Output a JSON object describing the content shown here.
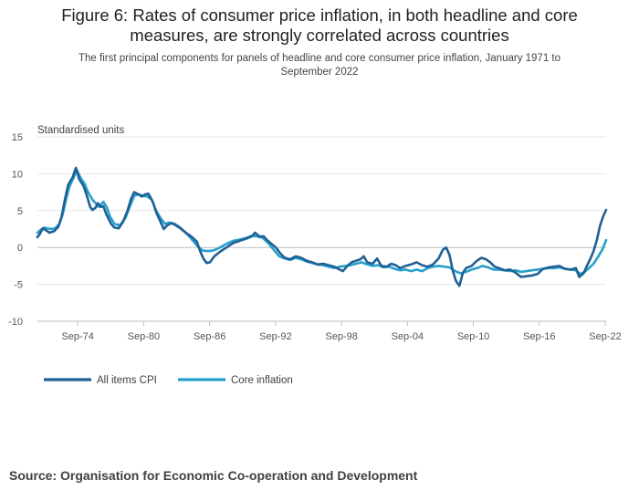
{
  "title_line1": "Figure 6: Rates of consumer price inflation, in both headline and core",
  "title_line2": "measures, are strongly correlated across countries",
  "subtitle_line1": "The first principal components for panels of headline and core consumer price inflation, January 1971 to",
  "subtitle_line2": "September 2022",
  "source": "Source: Organisation for Economic Co-operation and Development",
  "chart_data": {
    "type": "line",
    "title": "Figure 6: Rates of consumer price inflation, in both headline and core measures, are strongly correlated across countries",
    "ylabel": "Standardised units",
    "xlabel": "",
    "ylim": [
      -10,
      15
    ],
    "xlim": [
      1971.0,
      2022.75
    ],
    "yticks": [
      15,
      10,
      5,
      0,
      -5,
      -10
    ],
    "xticks": [
      {
        "label": "Sep-74",
        "value": 1974.67
      },
      {
        "label": "Sep-80",
        "value": 1980.67
      },
      {
        "label": "Sep-86",
        "value": 1986.67
      },
      {
        "label": "Sep-92",
        "value": 1992.67
      },
      {
        "label": "Sep-98",
        "value": 1998.67
      },
      {
        "label": "Sep-04",
        "value": 2004.67
      },
      {
        "label": "Sep-10",
        "value": 2010.67
      },
      {
        "label": "Sep-16",
        "value": 2016.67
      },
      {
        "label": "Sep-22",
        "value": 2022.67
      }
    ],
    "grid": true,
    "legend": "bottom-left",
    "series": [
      {
        "name": "All items CPI",
        "color": "#206095",
        "points": [
          [
            1971.0,
            1.4
          ],
          [
            1971.2,
            1.8
          ],
          [
            1971.5,
            2.6
          ],
          [
            1971.8,
            2.3
          ],
          [
            1972.1,
            2.0
          ],
          [
            1972.5,
            2.2
          ],
          [
            1972.9,
            2.8
          ],
          [
            1973.2,
            4.2
          ],
          [
            1973.5,
            6.5
          ],
          [
            1973.8,
            8.5
          ],
          [
            1974.2,
            9.5
          ],
          [
            1974.5,
            10.8
          ],
          [
            1974.8,
            9.3
          ],
          [
            1975.2,
            8.3
          ],
          [
            1975.5,
            7.0
          ],
          [
            1975.8,
            5.5
          ],
          [
            1976.0,
            5.1
          ],
          [
            1976.3,
            5.4
          ],
          [
            1976.5,
            6.0
          ],
          [
            1976.8,
            5.5
          ],
          [
            1977.0,
            5.6
          ],
          [
            1977.3,
            4.4
          ],
          [
            1977.7,
            3.2
          ],
          [
            1978.0,
            2.7
          ],
          [
            1978.4,
            2.6
          ],
          [
            1978.8,
            3.5
          ],
          [
            1979.2,
            5.0
          ],
          [
            1979.5,
            6.5
          ],
          [
            1979.8,
            7.5
          ],
          [
            1980.2,
            7.2
          ],
          [
            1980.5,
            6.9
          ],
          [
            1980.8,
            7.2
          ],
          [
            1981.1,
            7.3
          ],
          [
            1981.5,
            6.2
          ],
          [
            1981.8,
            4.8
          ],
          [
            1982.2,
            3.5
          ],
          [
            1982.5,
            2.5
          ],
          [
            1982.8,
            3.0
          ],
          [
            1983.2,
            3.3
          ],
          [
            1983.6,
            3.0
          ],
          [
            1984.0,
            2.6
          ],
          [
            1984.5,
            2.0
          ],
          [
            1985.0,
            1.5
          ],
          [
            1985.5,
            0.8
          ],
          [
            1985.8,
            -0.5
          ],
          [
            1986.1,
            -1.5
          ],
          [
            1986.4,
            -2.1
          ],
          [
            1986.7,
            -2.0
          ],
          [
            1987.1,
            -1.2
          ],
          [
            1987.6,
            -0.6
          ],
          [
            1988.2,
            0.0
          ],
          [
            1988.8,
            0.6
          ],
          [
            1989.4,
            0.9
          ],
          [
            1990.0,
            1.2
          ],
          [
            1990.5,
            1.5
          ],
          [
            1990.8,
            2.0
          ],
          [
            1991.2,
            1.5
          ],
          [
            1991.6,
            1.5
          ],
          [
            1991.9,
            1.0
          ],
          [
            1992.3,
            0.5
          ],
          [
            1992.7,
            0.0
          ],
          [
            1993.1,
            -0.8
          ],
          [
            1993.5,
            -1.4
          ],
          [
            1994.0,
            -1.6
          ],
          [
            1994.5,
            -1.2
          ],
          [
            1995.0,
            -1.4
          ],
          [
            1995.5,
            -1.8
          ],
          [
            1996.0,
            -2.0
          ],
          [
            1996.5,
            -2.3
          ],
          [
            1997.0,
            -2.2
          ],
          [
            1997.5,
            -2.4
          ],
          [
            1998.0,
            -2.6
          ],
          [
            1998.5,
            -3.0
          ],
          [
            1998.8,
            -3.2
          ],
          [
            1999.2,
            -2.5
          ],
          [
            1999.6,
            -2.0
          ],
          [
            2000.0,
            -1.8
          ],
          [
            2000.4,
            -1.6
          ],
          [
            2000.7,
            -1.2
          ],
          [
            2001.0,
            -2.0
          ],
          [
            2001.5,
            -2.2
          ],
          [
            2001.9,
            -1.5
          ],
          [
            2002.3,
            -2.5
          ],
          [
            2002.8,
            -2.6
          ],
          [
            2003.2,
            -2.2
          ],
          [
            2003.6,
            -2.4
          ],
          [
            2004.0,
            -2.8
          ],
          [
            2004.5,
            -2.5
          ],
          [
            2005.0,
            -2.3
          ],
          [
            2005.5,
            -2.0
          ],
          [
            2006.0,
            -2.4
          ],
          [
            2006.5,
            -2.6
          ],
          [
            2007.0,
            -2.3
          ],
          [
            2007.5,
            -1.5
          ],
          [
            2007.9,
            -0.3
          ],
          [
            2008.2,
            0.0
          ],
          [
            2008.5,
            -1.0
          ],
          [
            2008.8,
            -3.2
          ],
          [
            2009.1,
            -4.6
          ],
          [
            2009.4,
            -5.2
          ],
          [
            2009.7,
            -3.5
          ],
          [
            2010.0,
            -2.8
          ],
          [
            2010.5,
            -2.5
          ],
          [
            2011.0,
            -1.8
          ],
          [
            2011.4,
            -1.4
          ],
          [
            2011.8,
            -1.6
          ],
          [
            2012.2,
            -2.0
          ],
          [
            2012.6,
            -2.6
          ],
          [
            2013.0,
            -2.8
          ],
          [
            2013.5,
            -3.1
          ],
          [
            2014.0,
            -3.0
          ],
          [
            2014.5,
            -3.4
          ],
          [
            2015.0,
            -4.0
          ],
          [
            2015.5,
            -3.9
          ],
          [
            2016.0,
            -3.8
          ],
          [
            2016.5,
            -3.6
          ],
          [
            2017.0,
            -2.9
          ],
          [
            2017.5,
            -2.7
          ],
          [
            2018.0,
            -2.6
          ],
          [
            2018.5,
            -2.5
          ],
          [
            2019.0,
            -2.9
          ],
          [
            2019.5,
            -3.0
          ],
          [
            2020.0,
            -2.8
          ],
          [
            2020.3,
            -4.0
          ],
          [
            2020.7,
            -3.5
          ],
          [
            2021.0,
            -2.5
          ],
          [
            2021.3,
            -1.6
          ],
          [
            2021.6,
            -0.5
          ],
          [
            2021.9,
            1.0
          ],
          [
            2022.2,
            3.0
          ],
          [
            2022.5,
            4.3
          ],
          [
            2022.75,
            5.1
          ]
        ]
      },
      {
        "name": "Core inflation",
        "color": "#27a0cc",
        "points": [
          [
            1971.0,
            2.0
          ],
          [
            1971.3,
            2.4
          ],
          [
            1971.6,
            2.7
          ],
          [
            1971.9,
            2.6
          ],
          [
            1972.2,
            2.5
          ],
          [
            1972.6,
            2.6
          ],
          [
            1973.0,
            3.2
          ],
          [
            1973.3,
            4.5
          ],
          [
            1973.6,
            6.5
          ],
          [
            1973.9,
            8.2
          ],
          [
            1974.3,
            9.5
          ],
          [
            1974.6,
            10.5
          ],
          [
            1974.9,
            9.5
          ],
          [
            1975.3,
            8.6
          ],
          [
            1975.6,
            7.5
          ],
          [
            1976.0,
            6.5
          ],
          [
            1976.3,
            6.0
          ],
          [
            1976.6,
            5.5
          ],
          [
            1977.0,
            6.2
          ],
          [
            1977.3,
            5.5
          ],
          [
            1977.6,
            4.2
          ],
          [
            1978.0,
            3.2
          ],
          [
            1978.5,
            3.0
          ],
          [
            1979.0,
            4.0
          ],
          [
            1979.4,
            5.5
          ],
          [
            1979.8,
            7.0
          ],
          [
            1980.2,
            7.2
          ],
          [
            1980.6,
            7.0
          ],
          [
            1981.0,
            6.9
          ],
          [
            1981.4,
            6.5
          ],
          [
            1981.8,
            5.0
          ],
          [
            1982.2,
            4.0
          ],
          [
            1982.6,
            3.2
          ],
          [
            1983.0,
            3.4
          ],
          [
            1983.5,
            3.2
          ],
          [
            1984.0,
            2.7
          ],
          [
            1984.5,
            2.0
          ],
          [
            1985.0,
            1.2
          ],
          [
            1985.5,
            0.3
          ],
          [
            1986.0,
            -0.4
          ],
          [
            1986.5,
            -0.5
          ],
          [
            1987.0,
            -0.4
          ],
          [
            1987.5,
            -0.1
          ],
          [
            1988.2,
            0.5
          ],
          [
            1988.8,
            0.9
          ],
          [
            1989.5,
            1.1
          ],
          [
            1990.0,
            1.3
          ],
          [
            1990.5,
            1.6
          ],
          [
            1991.0,
            1.5
          ],
          [
            1991.5,
            1.3
          ],
          [
            1992.0,
            0.6
          ],
          [
            1992.5,
            -0.3
          ],
          [
            1993.0,
            -1.2
          ],
          [
            1993.5,
            -1.5
          ],
          [
            1994.0,
            -1.7
          ],
          [
            1994.5,
            -1.4
          ],
          [
            1995.0,
            -1.6
          ],
          [
            1995.5,
            -1.9
          ],
          [
            1996.0,
            -2.1
          ],
          [
            1996.5,
            -2.3
          ],
          [
            1997.0,
            -2.4
          ],
          [
            1997.5,
            -2.6
          ],
          [
            1998.0,
            -2.8
          ],
          [
            1998.5,
            -2.6
          ],
          [
            1999.0,
            -2.5
          ],
          [
            1999.5,
            -2.4
          ],
          [
            2000.0,
            -2.2
          ],
          [
            2000.5,
            -2.0
          ],
          [
            2001.0,
            -2.3
          ],
          [
            2001.5,
            -2.5
          ],
          [
            2002.0,
            -2.4
          ],
          [
            2002.5,
            -2.7
          ],
          [
            2003.0,
            -2.6
          ],
          [
            2003.5,
            -2.9
          ],
          [
            2004.0,
            -3.1
          ],
          [
            2004.5,
            -3.0
          ],
          [
            2005.0,
            -3.2
          ],
          [
            2005.5,
            -3.0
          ],
          [
            2006.0,
            -3.2
          ],
          [
            2006.5,
            -2.8
          ],
          [
            2007.0,
            -2.6
          ],
          [
            2007.5,
            -2.5
          ],
          [
            2008.0,
            -2.6
          ],
          [
            2008.5,
            -2.7
          ],
          [
            2009.0,
            -3.2
          ],
          [
            2009.5,
            -3.5
          ],
          [
            2010.0,
            -3.3
          ],
          [
            2010.5,
            -3.0
          ],
          [
            2011.0,
            -2.8
          ],
          [
            2011.5,
            -2.5
          ],
          [
            2012.0,
            -2.7
          ],
          [
            2012.5,
            -3.0
          ],
          [
            2013.0,
            -3.0
          ],
          [
            2013.5,
            -3.1
          ],
          [
            2014.0,
            -3.2
          ],
          [
            2014.5,
            -3.1
          ],
          [
            2015.0,
            -3.3
          ],
          [
            2015.5,
            -3.2
          ],
          [
            2016.0,
            -3.1
          ],
          [
            2016.5,
            -3.0
          ],
          [
            2017.0,
            -2.9
          ],
          [
            2017.5,
            -2.8
          ],
          [
            2018.0,
            -2.8
          ],
          [
            2018.5,
            -2.7
          ],
          [
            2019.0,
            -2.9
          ],
          [
            2019.5,
            -3.0
          ],
          [
            2020.0,
            -3.1
          ],
          [
            2020.4,
            -3.6
          ],
          [
            2020.8,
            -3.3
          ],
          [
            2021.2,
            -2.8
          ],
          [
            2021.6,
            -2.2
          ],
          [
            2022.0,
            -1.3
          ],
          [
            2022.4,
            -0.3
          ],
          [
            2022.75,
            1.0
          ]
        ]
      }
    ]
  }
}
